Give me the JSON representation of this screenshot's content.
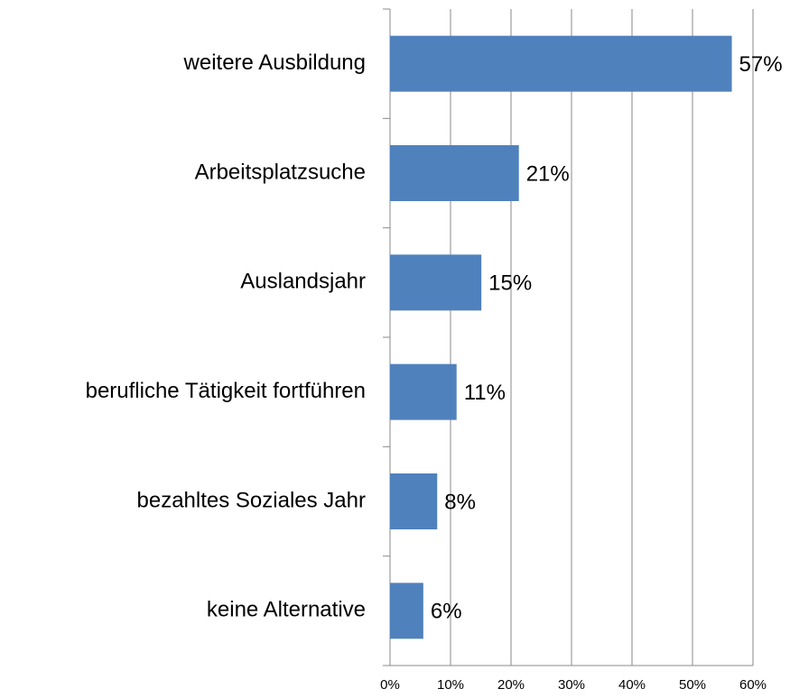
{
  "chart_data": {
    "type": "bar",
    "orientation": "horizontal",
    "categories": [
      "weitere Ausbildung",
      "Arbeitsplatzsuche",
      "Auslandsjahr",
      "berufliche Tätigkeit fortführen",
      "bezahltes Soziales Jahr",
      "keine Alternative"
    ],
    "values": [
      56.5,
      21.3,
      15.1,
      11.0,
      7.8,
      5.5
    ],
    "value_labels": [
      "57%",
      "21%",
      "15%",
      "11%",
      "8%",
      "6%"
    ],
    "color": "#4f81bd",
    "xlim": [
      0,
      60
    ],
    "xticks": [
      {
        "value": 0,
        "label": "0%"
      },
      {
        "value": 10,
        "label": "10%"
      },
      {
        "value": 20,
        "label": "20%"
      },
      {
        "value": 30,
        "label": "30%"
      },
      {
        "value": 40,
        "label": "40%"
      },
      {
        "value": 50,
        "label": "50%"
      },
      {
        "value": 60,
        "label": "60%"
      }
    ],
    "grid": true
  }
}
